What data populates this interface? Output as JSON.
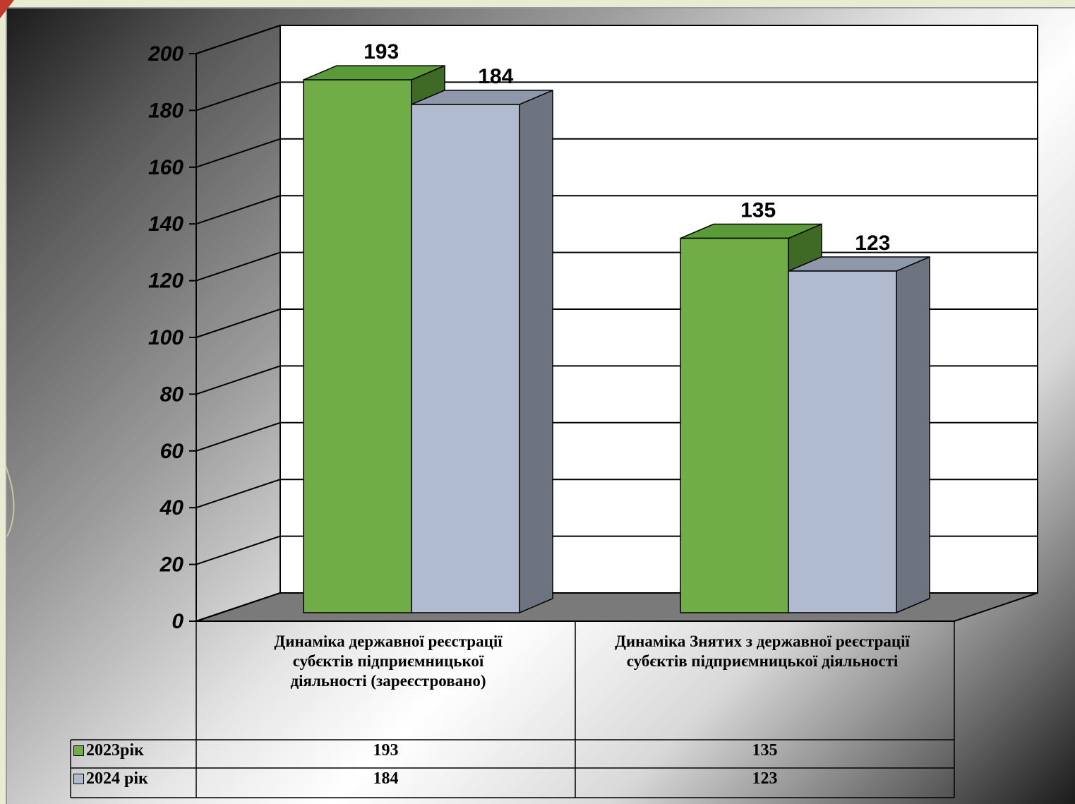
{
  "chart_data": {
    "type": "bar",
    "categories": [
      "Динаміка державної реєстрації субєктів підприємницької діяльності (зареєстровано)",
      "Динаміка Знятих з державної реєстрації субєктів підприємницької діяльності"
    ],
    "series": [
      {
        "name": "2023рік",
        "values": [
          193,
          135
        ],
        "color": "#70ad47",
        "side_color": "#3e6a25",
        "top_color": "#5a9a38"
      },
      {
        "name": "2024 рік",
        "values": [
          184,
          123
        ],
        "color": "#b0bbd0",
        "side_color": "#6d7480",
        "top_color": "#8f98ab"
      }
    ],
    "title": "",
    "xlabel": "",
    "ylabel": "",
    "ylim": [
      0,
      200
    ],
    "yticks": [
      0,
      20,
      40,
      60,
      80,
      100,
      120,
      140,
      160,
      180,
      200
    ],
    "grid": true,
    "legend": "data-table-left",
    "data_table": true,
    "style": "3d"
  }
}
